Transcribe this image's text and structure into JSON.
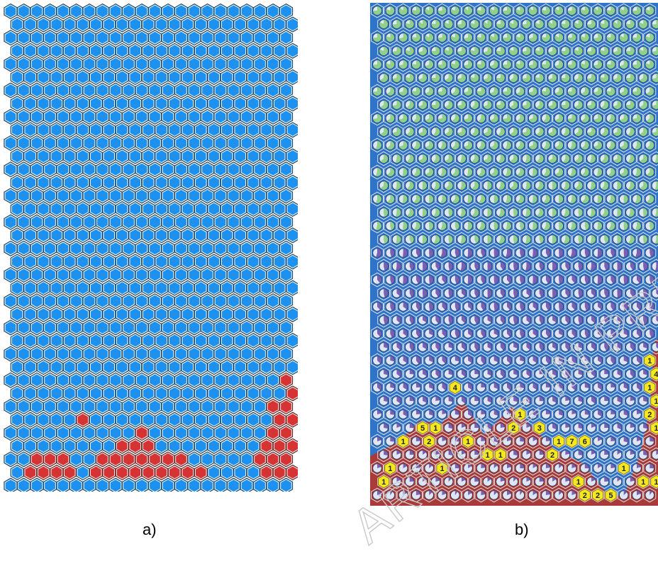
{
  "captions": {
    "a": "a)",
    "b": "b)"
  },
  "watermark": {
    "text": "ARTICLE IN PRESS"
  },
  "colors": {
    "blue": "#1e90ee",
    "red": "#d63434",
    "green_dot": "#8fd18a",
    "purple_dot": "#7b5fb5",
    "yellow_badge": "#f5e820",
    "hex_outline": "#ffffff",
    "watermark": "#c9c9c9"
  },
  "grid": {
    "columns": 22,
    "rows": 36
  },
  "panel_a_red_cells_by_row": {
    "28": [
      21
    ],
    "29": [
      21
    ],
    "30": [
      20,
      21
    ],
    "31": [
      5,
      20,
      21
    ],
    "32": [
      10,
      20,
      21
    ],
    "33": [
      8,
      9,
      10,
      19,
      20,
      21
    ],
    "34": [
      2,
      3,
      4,
      7,
      8,
      9,
      10,
      11,
      12,
      13,
      19,
      20,
      21
    ],
    "35": [
      1,
      2,
      3,
      4,
      6,
      7,
      8,
      9,
      10,
      11,
      12,
      13,
      14,
      19,
      20,
      21
    ]
  },
  "panel_b_badges": [
    {
      "row": 26,
      "col": 21,
      "text": "1"
    },
    {
      "row": 27,
      "col": 21,
      "text": "4"
    },
    {
      "row": 28,
      "col": 6,
      "text": "4"
    },
    {
      "row": 28,
      "col": 21,
      "text": "1"
    },
    {
      "row": 29,
      "col": 21,
      "text": "1"
    },
    {
      "row": 30,
      "col": 11,
      "text": "1"
    },
    {
      "row": 30,
      "col": 21,
      "text": "2"
    },
    {
      "row": 31,
      "col": 3,
      "text": "5"
    },
    {
      "row": 31,
      "col": 4,
      "text": "1"
    },
    {
      "row": 31,
      "col": 10,
      "text": "2"
    },
    {
      "row": 31,
      "col": 12,
      "text": "3"
    },
    {
      "row": 31,
      "col": 21,
      "text": "1"
    },
    {
      "row": 32,
      "col": 2,
      "text": "1"
    },
    {
      "row": 32,
      "col": 4,
      "text": "2"
    },
    {
      "row": 32,
      "col": 7,
      "text": "1"
    },
    {
      "row": 32,
      "col": 14,
      "text": "1"
    },
    {
      "row": 32,
      "col": 15,
      "text": "7"
    },
    {
      "row": 32,
      "col": 16,
      "text": "6"
    },
    {
      "row": 33,
      "col": 8,
      "text": "1"
    },
    {
      "row": 33,
      "col": 9,
      "text": "1"
    },
    {
      "row": 33,
      "col": 13,
      "text": "2"
    },
    {
      "row": 34,
      "col": 1,
      "text": "1"
    },
    {
      "row": 34,
      "col": 5,
      "text": "1"
    },
    {
      "row": 34,
      "col": 19,
      "text": "1"
    },
    {
      "row": 35,
      "col": 0,
      "text": "1"
    },
    {
      "row": 35,
      "col": 15,
      "text": "1"
    },
    {
      "row": 35,
      "col": 20,
      "text": "1"
    },
    {
      "row": 35,
      "col": 21,
      "text": "1"
    },
    {
      "row": 36,
      "col": 16,
      "text": "2"
    },
    {
      "row": 36,
      "col": 17,
      "text": "2"
    },
    {
      "row": 36,
      "col": 18,
      "text": "5"
    }
  ]
}
